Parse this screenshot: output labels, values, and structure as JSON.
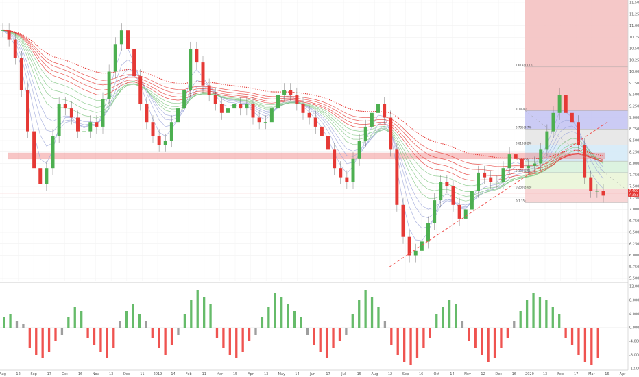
{
  "chart_data": [
    {
      "type": "line",
      "subtype": "candlestick-with-ribbon",
      "title": "",
      "xlabel": "",
      "ylabel": "",
      "x_ticks": [
        "Aug",
        "12",
        "Sep",
        "17",
        "Oct",
        "16",
        "Nov",
        "13",
        "Dec",
        "11",
        "2019",
        "14",
        "Feb",
        "11",
        "Mar",
        "15",
        "Apr",
        "13",
        "May",
        "14",
        "Jun",
        "17",
        "Jul",
        "15",
        "Aug",
        "12",
        "Sep",
        "16",
        "Oct",
        "14",
        "Nov",
        "12",
        "Dec",
        "16",
        "2020",
        "13",
        "Feb",
        "17",
        "Mar",
        "16",
        "Apr"
      ],
      "y_ticks": [
        "11.500",
        "11.250",
        "11.000",
        "10.750",
        "10.500",
        "10.250",
        "10.000",
        "9.750",
        "9.500",
        "9.250",
        "9.000",
        "8.750",
        "8.500",
        "8.250",
        "8.000",
        "7.750",
        "7.500",
        "7.250",
        "7.000",
        "6.750",
        "6.500",
        "6.250",
        "6.000",
        "5.750",
        "5.500"
      ],
      "ylim": [
        5.5,
        11.5
      ],
      "close": [
        10.9,
        10.7,
        10.3,
        9.6,
        8.7,
        7.9,
        7.55,
        7.9,
        8.6,
        9.3,
        9.2,
        9.0,
        8.7,
        8.7,
        8.9,
        8.8,
        9.4,
        10.0,
        10.6,
        10.9,
        10.5,
        9.9,
        9.3,
        8.9,
        8.6,
        8.4,
        8.5,
        8.9,
        9.2,
        9.6,
        10.5,
        10.2,
        9.7,
        9.5,
        9.3,
        9.1,
        9.2,
        9.3,
        9.2,
        9.3,
        9.0,
        8.9,
        8.9,
        9.2,
        9.5,
        9.6,
        9.5,
        9.3,
        9.1,
        9.0,
        8.8,
        8.6,
        8.3,
        7.9,
        7.7,
        7.6,
        8.1,
        8.5,
        8.8,
        9.1,
        9.3,
        9.0,
        8.3,
        7.1,
        6.4,
        6.0,
        6.1,
        6.3,
        6.7,
        7.2,
        7.6,
        7.5,
        7.1,
        6.8,
        7.0,
        7.4,
        7.8,
        7.7,
        7.6,
        7.6,
        7.9,
        8.2,
        8.1,
        7.9,
        7.95,
        8.0,
        8.3,
        8.7,
        9.1,
        9.5,
        9.1,
        8.9,
        8.4,
        7.7,
        7.4,
        7.4,
        7.3
      ],
      "levels": [
        {
          "label": "1.618(13.10)",
          "value": 10.1
        },
        {
          "label": "1(10.40)",
          "value": 9.15
        },
        {
          "label": "0.786(9.74)",
          "value": 8.75
        },
        {
          "label": "0.618(9.24)",
          "value": 8.4
        },
        {
          "label": "0.5(8.87)",
          "value": 8.05
        },
        {
          "label": "0.382(8.51)",
          "value": 7.8
        },
        {
          "label": "0.236(8.06)",
          "value": 7.45
        },
        {
          "label": "0(7.35)",
          "value": 7.15
        }
      ],
      "resistance_zone": [
        8.1,
        8.23
      ],
      "current_price": "7.353",
      "current_price_alt": "7.400",
      "colors": {
        "up": "#4caf50",
        "down": "#e53935",
        "ribbon_slow": "#e53935",
        "ribbon_fast": "#43a047",
        "ribbon_mid": "#9fa8da",
        "trend": "#ef5350"
      }
    },
    {
      "type": "bar",
      "title": "",
      "xlabel": "",
      "ylabel": "",
      "y_ticks": [
        "12.000",
        "8.000",
        "4.000",
        "0.000",
        "-4.000",
        "-8.000",
        "-12.000"
      ],
      "ylim": [
        -12,
        12
      ],
      "values": [
        3,
        4,
        2,
        1,
        -6,
        -8,
        -9,
        -7,
        -4,
        -2,
        3,
        6,
        5,
        -3,
        -5,
        -7,
        -9,
        -6,
        2,
        5,
        7,
        4,
        2,
        -3,
        -6,
        -8,
        -5,
        -2,
        4,
        8,
        11,
        9,
        7,
        -3,
        -6,
        -8,
        -9,
        -7,
        -4,
        -2,
        3,
        6,
        10,
        9,
        7,
        5,
        3,
        -2,
        -5,
        -7,
        -9,
        -6,
        -4,
        -2,
        4,
        8,
        11,
        9,
        6,
        2,
        -5,
        -8,
        -10,
        -11,
        -9,
        -6,
        -3,
        4,
        6,
        8,
        7,
        2,
        -4,
        -6,
        -8,
        -10,
        -9,
        -6,
        -3,
        2,
        5,
        8,
        10,
        9,
        8,
        6,
        4,
        -3,
        -5,
        -8,
        -10,
        -11,
        -9
      ],
      "colors": {
        "positive": "#66bb6a",
        "negative": "#ef5350",
        "neutral": "#9e9e9e"
      }
    }
  ]
}
